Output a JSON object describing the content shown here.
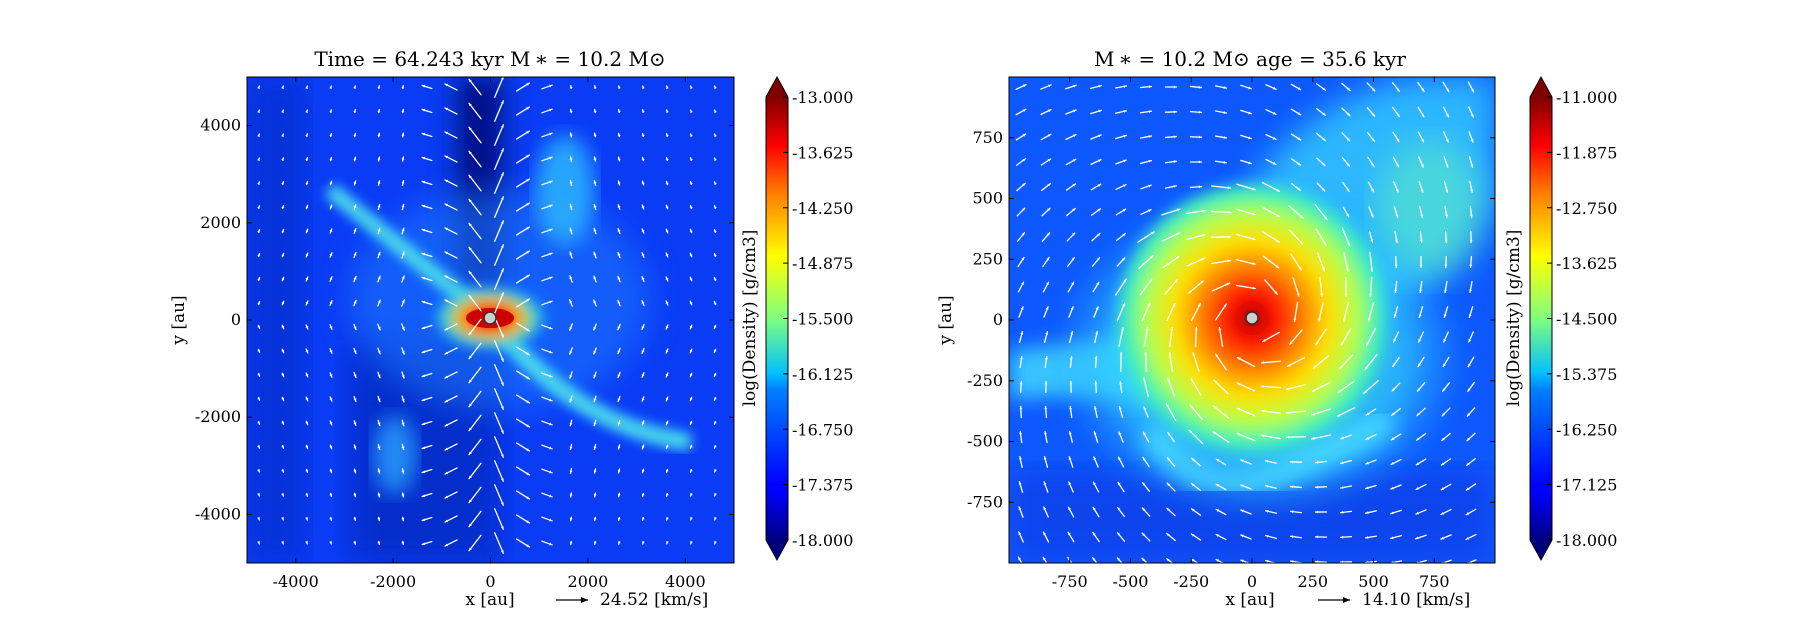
{
  "chart_data": [
    {
      "type": "heatmap",
      "title": "Time = 64.243 kyr    M ∗ = 10.2 M⊙",
      "xlabel": "x [au]",
      "ylabel": "y [au]",
      "xlim": [
        -5000,
        5000
      ],
      "ylim": [
        -5000,
        5000
      ],
      "xticks": [
        -4000,
        -2000,
        0,
        2000,
        4000
      ],
      "yticks": [
        -4000,
        -2000,
        0,
        2000,
        4000
      ],
      "colorbar": {
        "label": "log(Density) [g/cm3]",
        "min": -18.0,
        "max": -13.0,
        "ticks": [
          "-13.000",
          "-13.625",
          "-14.250",
          "-14.875",
          "-15.500",
          "-16.125",
          "-16.750",
          "-17.375",
          "-18.000"
        ],
        "colormap": "jet"
      },
      "vector_key": "24.52 [km/s]",
      "grid": false,
      "features": {
        "central_peak_log_density": -13.0,
        "background_log_density": -17.2,
        "outflow_cavity": "vertical, along y axis",
        "filaments": [
          {
            "from": [
              -3200,
              2600
            ],
            "to": [
              0,
              0
            ],
            "log_density": -15.8
          },
          {
            "from": [
              0,
              0
            ],
            "to": [
              3800,
              -2500
            ],
            "log_density": -15.8
          }
        ]
      }
    },
    {
      "type": "heatmap",
      "title": "M ∗ = 10.2 M⊙          age = 35.6 kyr",
      "xlabel": "x [au]",
      "ylabel": "y [au]",
      "xlim": [
        -1000,
        1000
      ],
      "ylim": [
        -1000,
        1000
      ],
      "xticks": [
        -750,
        -500,
        -250,
        0,
        250,
        500,
        750
      ],
      "yticks": [
        -750,
        -500,
        -250,
        0,
        250,
        500,
        750
      ],
      "colorbar": {
        "label": "log(Density) [g/cm3]",
        "min": -18.0,
        "max": -11.0,
        "ticks": [
          "-11.000",
          "-11.875",
          "-12.750",
          "-13.625",
          "-14.500",
          "-15.375",
          "-16.250",
          "-17.125",
          "-18.000"
        ],
        "colormap": "jet"
      },
      "vector_key": "14.10 [km/s]",
      "grid": false,
      "features": {
        "central_peak_log_density": -11.5,
        "disk_radius_au": 300,
        "background_log_density": -16.6,
        "spiral_arms": "envelope spiral extending to upper right and left"
      }
    }
  ]
}
